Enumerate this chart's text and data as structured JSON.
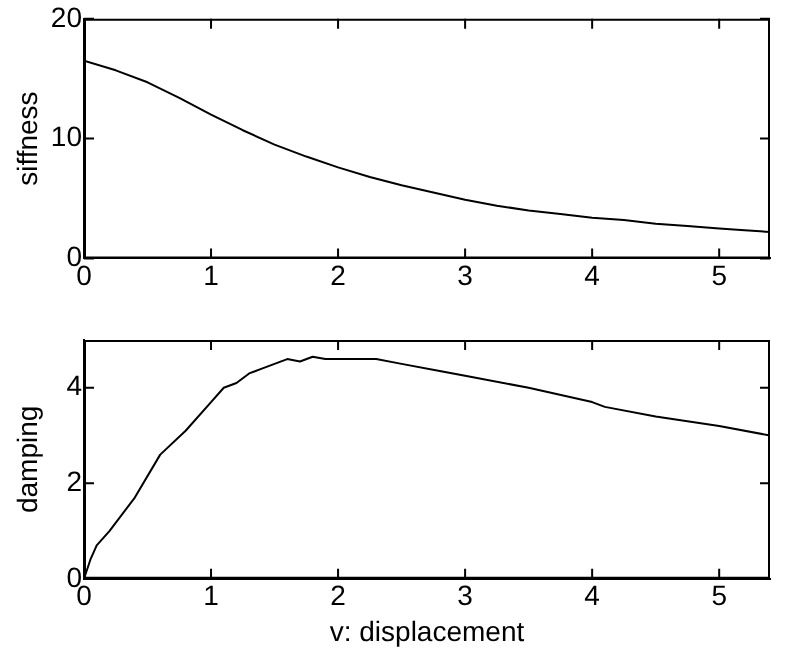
{
  "chart_data": [
    {
      "type": "line",
      "ylabel": "siffness",
      "xlim": [
        0,
        5.4
      ],
      "xticks": [
        0,
        1,
        2,
        3,
        4,
        5
      ],
      "ylim": [
        0,
        20
      ],
      "yticks": [
        0,
        10,
        20
      ],
      "grid": false,
      "legend": false,
      "marker": "none",
      "line_style": "solid",
      "series": [
        {
          "color": "#000000",
          "x": [
            0,
            0.25,
            0.5,
            0.75,
            1,
            1.25,
            1.5,
            1.75,
            2,
            2.25,
            2.5,
            2.75,
            3,
            3.25,
            3.5,
            3.75,
            4,
            4.25,
            4.5,
            4.75,
            5,
            5.2,
            5.4
          ],
          "values": [
            16.5,
            15.7,
            14.7,
            13.4,
            12,
            10.7,
            9.5,
            8.5,
            7.6,
            6.8,
            6.1,
            5.5,
            4.9,
            4.4,
            4.0,
            3.7,
            3.4,
            3.2,
            2.9,
            2.7,
            2.5,
            2.35,
            2.2
          ]
        }
      ]
    },
    {
      "type": "line",
      "xlabel": "v: displacement",
      "ylabel": "damping",
      "xlim": [
        0,
        5.4
      ],
      "xticks": [
        0,
        1,
        2,
        3,
        4,
        5
      ],
      "ylim": [
        0,
        5
      ],
      "yticks": [
        0,
        2,
        4
      ],
      "grid": false,
      "legend": false,
      "marker": "none",
      "line_style": "solid",
      "series": [
        {
          "color": "#000000",
          "x": [
            0,
            0.05,
            0.1,
            0.2,
            0.4,
            0.6,
            0.8,
            1.0,
            1.1,
            1.2,
            1.3,
            1.4,
            1.5,
            1.6,
            1.7,
            1.8,
            1.9,
            2.0,
            2.3,
            2.5,
            2.8,
            3.0,
            3.5,
            4.0,
            4.1,
            4.5,
            5.0,
            5.4
          ],
          "values": [
            0,
            0.4,
            0.7,
            1.0,
            1.7,
            2.6,
            3.1,
            3.7,
            4.0,
            4.1,
            4.3,
            4.4,
            4.5,
            4.6,
            4.55,
            4.65,
            4.6,
            4.6,
            4.6,
            4.5,
            4.35,
            4.25,
            4.0,
            3.7,
            3.6,
            3.4,
            3.2,
            3.0
          ]
        }
      ]
    }
  ]
}
